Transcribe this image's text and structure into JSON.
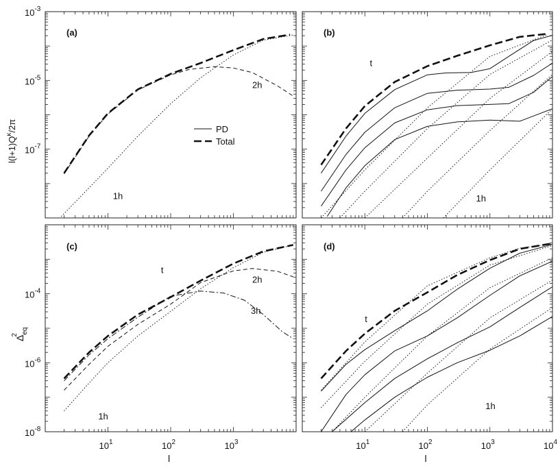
{
  "chart_data": [
    {
      "type": "line",
      "panel_label": "(a)",
      "ylabel": "l(l+1)Q",
      "ylabel_sup": "κ",
      "ylabel_tail": "/2π",
      "xscale": "log",
      "yscale": "log",
      "xlim": [
        1,
        10000
      ],
      "ylim": [
        1e-09,
        0.001
      ],
      "x_tick_labels": [],
      "y_tick_labels": [
        {
          "base": "10",
          "exp": "-3",
          "value": 0.001
        },
        {
          "base": "10",
          "exp": "-5",
          "value": 1e-05
        },
        {
          "base": "10",
          "exp": "-7",
          "value": 1e-07
        }
      ],
      "legend": {
        "position": "center",
        "entries": [
          {
            "label": "PD",
            "style": "solid"
          },
          {
            "label": "Total",
            "style": "thick-dashed"
          }
        ]
      },
      "annotations": [
        {
          "text": "2h",
          "x": 2000,
          "y": 6e-06
        },
        {
          "text": "1h",
          "x": 12,
          "y": 3.5e-09
        }
      ],
      "series": [
        {
          "style": "thick-dashed",
          "x": [
            2,
            5,
            10,
            30,
            100,
            300,
            1000,
            3000,
            8000
          ],
          "y": [
            2e-08,
            2.5e-07,
            1.1e-06,
            5.5e-06,
            1.55e-05,
            3.2e-05,
            7.6e-05,
            0.00016,
            0.000215
          ]
        },
        {
          "style": "dashed",
          "x": [
            2,
            5,
            10,
            30,
            100,
            200,
            500,
            1000,
            2000,
            5000,
            9000
          ],
          "y": [
            1.9e-08,
            2.4e-07,
            1.05e-06,
            5.3e-06,
            1.45e-05,
            2.1e-05,
            2.5e-05,
            2.3e-05,
            1.7e-05,
            7e-06,
            3.5e-06
          ]
        },
        {
          "style": "dotted",
          "x": [
            1.8,
            5,
            10,
            30,
            100,
            300,
            1000,
            3000,
            9000
          ],
          "y": [
            1.1e-09,
            7.5e-09,
            2.8e-08,
            2.4e-07,
            2.1e-06,
            1.2e-05,
            5.5e-05,
            0.000148,
            0.00021
          ]
        }
      ]
    },
    {
      "type": "line",
      "panel_label": "(b)",
      "xscale": "log",
      "yscale": "log",
      "xlim": [
        1,
        10000
      ],
      "ylim": [
        1e-09,
        0.001
      ],
      "x_tick_labels": [],
      "y_tick_labels": [],
      "annotations": [
        {
          "text": "t",
          "x": 12,
          "y": 2.6e-05
        },
        {
          "text": "1h",
          "x": 600,
          "y": 3e-09
        }
      ],
      "series": [
        {
          "style": "thick-dashed",
          "x": [
            2,
            5,
            10,
            30,
            100,
            300,
            1000,
            3000,
            8000
          ],
          "y": [
            3.5e-08,
            4e-07,
            1.8e-06,
            9e-06,
            2.6e-05,
            5.2e-05,
            0.000105,
            0.000185,
            0.000225
          ]
        },
        {
          "style": "solid",
          "x": [
            2,
            5,
            10,
            30,
            100,
            200,
            500,
            1000,
            2000,
            5000,
            10000
          ],
          "y": [
            2e-08,
            2.4e-07,
            1.1e-06,
            5.4e-06,
            1.45e-05,
            1.65e-05,
            1.7e-05,
            2.2e-05,
            5e-05,
            0.000145,
            0.000205
          ]
        },
        {
          "style": "solid",
          "x": [
            2,
            5,
            10,
            30,
            100,
            300,
            1000,
            2000,
            5000,
            10000
          ],
          "y": [
            6e-09,
            7e-08,
            3.1e-07,
            1.6e-06,
            4.2e-06,
            5.2e-06,
            5.6e-06,
            6.3e-06,
            1.4e-05,
            3.2e-05
          ]
        },
        {
          "style": "solid",
          "x": [
            2,
            5,
            10,
            30,
            100,
            300,
            1000,
            2000,
            5000,
            10000
          ],
          "y": [
            2.2e-09,
            2.5e-08,
            1.1e-07,
            5.8e-07,
            1.4e-06,
            1.85e-06,
            2e-06,
            2.1e-06,
            4.5e-06,
            1.3e-05
          ]
        },
        {
          "style": "solid",
          "x": [
            2.5,
            5,
            10,
            30,
            100,
            300,
            1000,
            3000,
            10000
          ],
          "y": [
            1.1e-09,
            7.5e-09,
            3.3e-08,
            1.9e-07,
            4.6e-07,
            6.2e-07,
            7e-07,
            6.5e-07,
            1.5e-06
          ]
        },
        {
          "style": "dotted",
          "x": [
            2,
            10,
            100,
            1000,
            8000
          ],
          "y": [
            1e-09,
            2.5e-08,
            1.6e-06,
            5e-05,
            0.00021
          ]
        },
        {
          "style": "dotted",
          "x": [
            4,
            10,
            100,
            1000,
            10000
          ],
          "y": [
            1e-09,
            6e-09,
            4e-07,
            1.5e-05,
            0.00015
          ]
        },
        {
          "style": "dotted",
          "x": [
            10,
            100,
            1000,
            10000
          ],
          "y": [
            1e-09,
            5.5e-08,
            3e-06,
            7e-05
          ]
        },
        {
          "style": "dotted",
          "x": [
            40,
            100,
            1000,
            10000
          ],
          "y": [
            1e-09,
            6e-09,
            3.5e-07,
            1.5e-05
          ]
        },
        {
          "style": "dotted",
          "x": [
            180,
            1000,
            10000
          ],
          "y": [
            1e-09,
            2.5e-08,
            1.5e-06
          ]
        }
      ]
    },
    {
      "type": "line",
      "panel_label": "(c)",
      "ylabel": "Δ",
      "ylabel_sup": "2",
      "ylabel_sub": "eq",
      "xlabel": "l",
      "xscale": "log",
      "yscale": "log",
      "xlim": [
        1,
        10000
      ],
      "ylim": [
        1e-08,
        0.01
      ],
      "x_tick_labels": [
        {
          "base": "10",
          "exp": "1",
          "value": 10
        },
        {
          "base": "10",
          "exp": "2",
          "value": 100
        },
        {
          "base": "10",
          "exp": "3",
          "value": 1000
        }
      ],
      "y_tick_labels": [
        {
          "base": "10",
          "exp": "-4",
          "value": 0.0001
        },
        {
          "base": "10",
          "exp": "-6",
          "value": 1e-06
        },
        {
          "base": "10",
          "exp": "-8",
          "value": 1e-08
        }
      ],
      "annotations": [
        {
          "text": "t",
          "x": 70,
          "y": 0.0004
        },
        {
          "text": "2h",
          "x": 2000,
          "y": 0.00021
        },
        {
          "text": "3h",
          "x": 1900,
          "y": 2.6e-05
        },
        {
          "text": "1h",
          "x": 7,
          "y": 2.3e-08
        }
      ],
      "series": [
        {
          "style": "thick-dashed",
          "x": [
            2,
            5,
            10,
            30,
            100,
            300,
            1000,
            3000,
            9000
          ],
          "y": [
            3.5e-07,
            2e-06,
            6e-06,
            2.5e-05,
            8e-05,
            0.00024,
            0.00075,
            0.0017,
            0.0026
          ]
        },
        {
          "style": "dashed",
          "x": [
            2,
            5,
            10,
            30,
            100,
            300,
            1000,
            2000,
            5000,
            9000
          ],
          "y": [
            1.6e-07,
            9e-07,
            3e-06,
            1.3e-05,
            5e-05,
            0.00021,
            0.00046,
            0.00054,
            0.00045,
            0.00031
          ]
        },
        {
          "style": "dashdot",
          "x": [
            2,
            5,
            10,
            30,
            100,
            300,
            700,
            1500,
            3000,
            6000,
            9000
          ],
          "y": [
            3e-07,
            1.7e-06,
            5e-06,
            2.1e-05,
            8.5e-05,
            0.00012,
            0.000105,
            6.5e-05,
            2.5e-05,
            8e-06,
            5e-06
          ]
        },
        {
          "style": "dotted",
          "x": [
            2,
            5,
            10,
            30,
            100,
            300,
            1000,
            3000,
            9000
          ],
          "y": [
            4e-08,
            2.6e-07,
            1e-06,
            6e-06,
            3.1e-05,
            0.00014,
            0.00057,
            0.0016,
            0.0026
          ]
        }
      ]
    },
    {
      "type": "line",
      "panel_label": "(d)",
      "xlabel": "l",
      "xscale": "log",
      "yscale": "log",
      "xlim": [
        1,
        10000
      ],
      "ylim": [
        1e-08,
        0.01
      ],
      "x_tick_labels": [
        {
          "base": "10",
          "exp": "1",
          "value": 10
        },
        {
          "base": "10",
          "exp": "2",
          "value": 100
        },
        {
          "base": "10",
          "exp": "3",
          "value": 1000
        },
        {
          "base": "10",
          "exp": "4",
          "value": 10000
        }
      ],
      "y_tick_labels": [],
      "annotations": [
        {
          "text": "t",
          "x": 10,
          "y": 1.5e-05
        },
        {
          "text": "1h",
          "x": 850,
          "y": 4.5e-08
        }
      ],
      "series": [
        {
          "style": "thick-dashed",
          "x": [
            2,
            5,
            10,
            30,
            100,
            300,
            1000,
            3000,
            10000
          ],
          "y": [
            3.5e-07,
            2.2e-06,
            7e-06,
            3.2e-05,
            0.00011,
            0.00035,
            0.00095,
            0.002,
            0.0029
          ]
        },
        {
          "style": "solid",
          "x": [
            2,
            5,
            10,
            30,
            100,
            300,
            1000,
            3000,
            10000
          ],
          "y": [
            1.5e-07,
            9e-07,
            2.4e-06,
            8.5e-06,
            3.2e-05,
            0.000135,
            0.00055,
            0.0015,
            0.0027
          ]
        },
        {
          "style": "solid",
          "x": [
            2,
            5,
            10,
            30,
            100,
            300,
            1000,
            3000,
            10000
          ],
          "y": [
            1e-08,
            1.2e-07,
            4.5e-07,
            2.2e-06,
            6e-06,
            2e-05,
            9e-05,
            0.00033,
            0.00088
          ]
        },
        {
          "style": "solid",
          "x": [
            3,
            10,
            30,
            100,
            300,
            1000,
            3000,
            10000
          ],
          "y": [
            1e-08,
            7e-08,
            3.5e-07,
            1.3e-06,
            3.8e-06,
            1.1e-05,
            4e-05,
            0.00016
          ]
        },
        {
          "style": "solid",
          "x": [
            6,
            10,
            30,
            100,
            300,
            1000,
            3000,
            10000
          ],
          "y": [
            1e-08,
            2.2e-08,
            1e-07,
            3.8e-07,
            1e-06,
            2.3e-06,
            6e-06,
            2.2e-05
          ]
        },
        {
          "style": "dotted",
          "x": [
            2,
            10,
            100,
            1000,
            3000,
            10000
          ],
          "y": [
            1.6e-07,
            4e-06,
            0.00017,
            0.0011,
            0.0021,
            0.0028
          ]
        },
        {
          "style": "dotted",
          "x": [
            2,
            10,
            100,
            1000,
            10000
          ],
          "y": [
            5e-08,
            1.1e-06,
            5e-05,
            0.00068,
            0.0025
          ]
        },
        {
          "style": "dotted",
          "x": [
            3,
            10,
            100,
            1000,
            10000
          ],
          "y": [
            1e-08,
            1e-07,
            6e-06,
            0.00015,
            0.0011
          ]
        },
        {
          "style": "dotted",
          "x": [
            10,
            100,
            1000,
            10000
          ],
          "y": [
            1e-08,
            5e-07,
            2e-05,
            0.00025
          ]
        },
        {
          "style": "dotted",
          "x": [
            40,
            100,
            1000,
            10000
          ],
          "y": [
            1e-08,
            6e-08,
            2.5e-06,
            4e-05
          ]
        }
      ]
    }
  ]
}
